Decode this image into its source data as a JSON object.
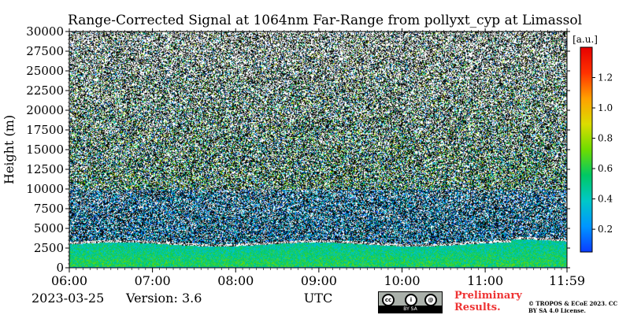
{
  "chart_data": {
    "type": "heatmap",
    "title": "Range-Corrected Signal at 1064nm Far-Range from pollyxt_cyp at Limassol",
    "xlabel": "UTC",
    "ylabel": "Height (m)",
    "x_ticks": [
      "06:00",
      "07:00",
      "08:00",
      "09:00",
      "10:00",
      "11:00",
      "11:59"
    ],
    "y_ticks": [
      "0",
      "2500",
      "5000",
      "7500",
      "10000",
      "12500",
      "15000",
      "17500",
      "20000",
      "22500",
      "25000",
      "27500",
      "30000"
    ],
    "xlim": [
      "06:00",
      "11:59"
    ],
    "ylim": [
      0,
      30000
    ],
    "colorbar": {
      "label": "[a.u.]",
      "ticks": [
        "0.2",
        "0.4",
        "0.6",
        "0.8",
        "1.0",
        "1.2"
      ],
      "range": [
        0.05,
        1.4
      ],
      "colors": [
        "#0a3cff",
        "#0096ff",
        "#00c8c8",
        "#00c864",
        "#6edc00",
        "#dcdc00",
        "#ffa000",
        "#ff3200",
        "#e60000"
      ]
    },
    "features": {
      "aerosol_layer_top_m": 3000,
      "noise_background_above_m": 3500,
      "layer_mean_value": 0.6
    }
  },
  "footer": {
    "date": "2023-03-25",
    "version": "Version: 3.6",
    "preliminary": "Preliminary Results.",
    "license": "© TROPOS & ECoE 2023. CC BY SA 4.0 License.",
    "cc_badge": "BY SA"
  }
}
